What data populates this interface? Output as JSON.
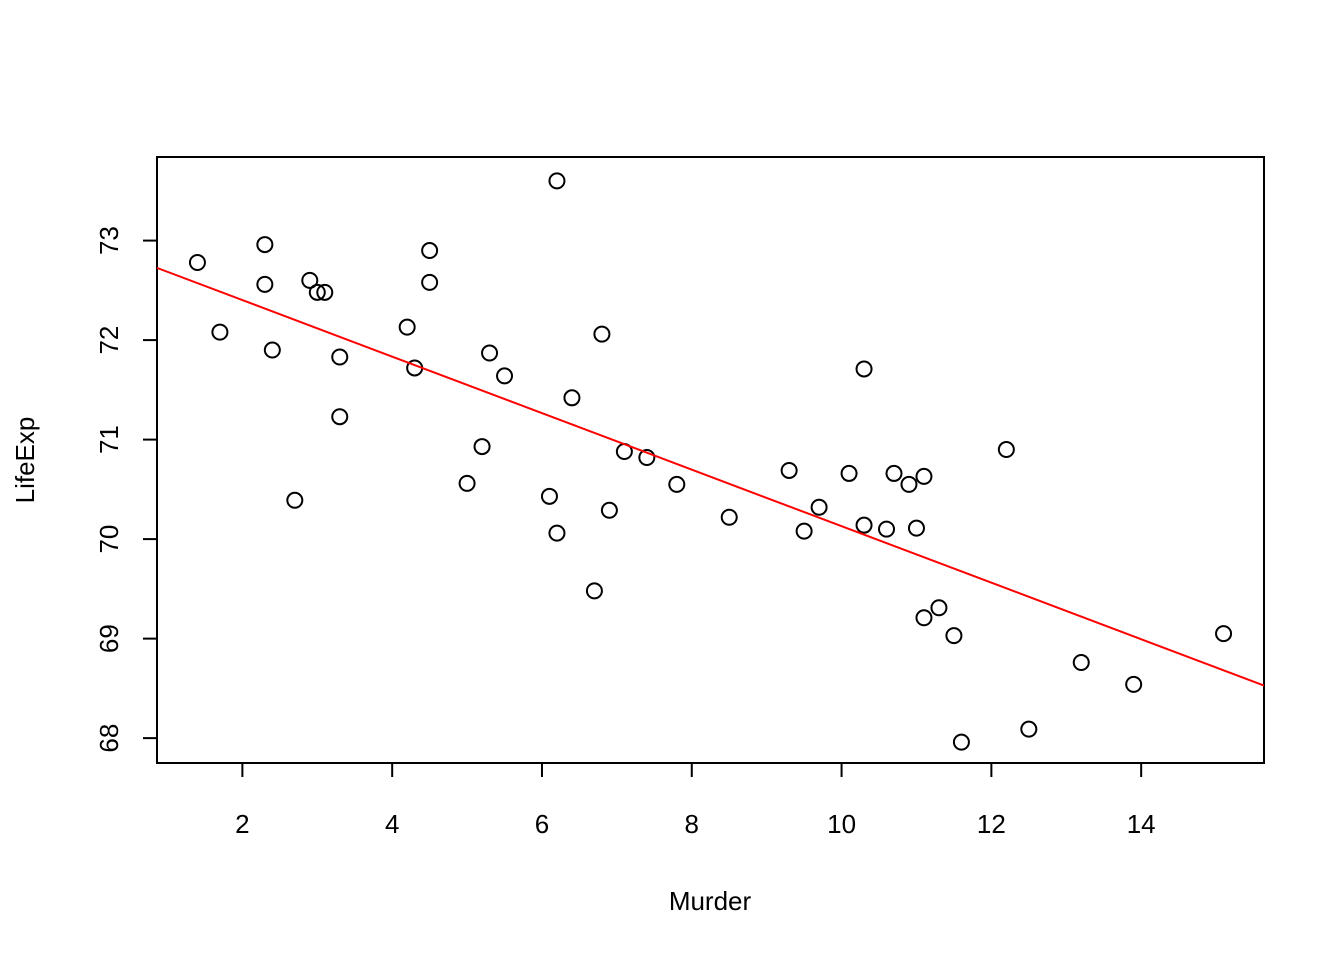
{
  "chart_data": {
    "type": "scatter",
    "title": "",
    "xlabel": "Murder",
    "ylabel": "LifeExp",
    "xlim": [
      0.86,
      15.64
    ],
    "ylim": [
      67.75,
      73.84
    ],
    "xticks": [
      2,
      4,
      6,
      8,
      10,
      12,
      14
    ],
    "yticks": [
      68,
      69,
      70,
      71,
      72,
      73
    ],
    "grid": false,
    "legend": "none",
    "fit_line": {
      "intercept": 72.97,
      "slope": -0.284,
      "color": "#ff0000"
    },
    "points": [
      {
        "x": 15.1,
        "y": 69.05
      },
      {
        "x": 11.3,
        "y": 69.31
      },
      {
        "x": 7.8,
        "y": 70.55
      },
      {
        "x": 10.1,
        "y": 70.66
      },
      {
        "x": 10.3,
        "y": 71.71
      },
      {
        "x": 6.8,
        "y": 72.06
      },
      {
        "x": 3.1,
        "y": 72.48
      },
      {
        "x": 6.2,
        "y": 70.06
      },
      {
        "x": 10.7,
        "y": 70.66
      },
      {
        "x": 13.9,
        "y": 68.54
      },
      {
        "x": 6.2,
        "y": 73.6
      },
      {
        "x": 5.3,
        "y": 71.87
      },
      {
        "x": 10.3,
        "y": 70.14
      },
      {
        "x": 7.1,
        "y": 70.88
      },
      {
        "x": 2.3,
        "y": 72.56
      },
      {
        "x": 4.5,
        "y": 72.58
      },
      {
        "x": 10.6,
        "y": 70.1
      },
      {
        "x": 13.2,
        "y": 68.76
      },
      {
        "x": 2.7,
        "y": 70.39
      },
      {
        "x": 8.5,
        "y": 70.22
      },
      {
        "x": 3.3,
        "y": 71.83
      },
      {
        "x": 11.1,
        "y": 70.63
      },
      {
        "x": 2.3,
        "y": 72.96
      },
      {
        "x": 12.5,
        "y": 68.09
      },
      {
        "x": 9.3,
        "y": 70.69
      },
      {
        "x": 5.0,
        "y": 70.56
      },
      {
        "x": 2.9,
        "y": 72.6
      },
      {
        "x": 11.5,
        "y": 69.03
      },
      {
        "x": 3.3,
        "y": 71.23
      },
      {
        "x": 5.2,
        "y": 70.93
      },
      {
        "x": 9.7,
        "y": 70.32
      },
      {
        "x": 10.9,
        "y": 70.55
      },
      {
        "x": 11.1,
        "y": 69.21
      },
      {
        "x": 1.4,
        "y": 72.78
      },
      {
        "x": 7.4,
        "y": 70.82
      },
      {
        "x": 6.4,
        "y": 71.42
      },
      {
        "x": 4.2,
        "y": 72.13
      },
      {
        "x": 6.1,
        "y": 70.43
      },
      {
        "x": 2.4,
        "y": 71.9
      },
      {
        "x": 11.6,
        "y": 67.96
      },
      {
        "x": 1.7,
        "y": 72.08
      },
      {
        "x": 11.0,
        "y": 70.11
      },
      {
        "x": 12.2,
        "y": 70.9
      },
      {
        "x": 4.5,
        "y": 72.9
      },
      {
        "x": 5.5,
        "y": 71.64
      },
      {
        "x": 9.5,
        "y": 70.08
      },
      {
        "x": 4.3,
        "y": 71.72
      },
      {
        "x": 6.7,
        "y": 69.48
      },
      {
        "x": 3.0,
        "y": 72.48
      },
      {
        "x": 6.9,
        "y": 70.29
      }
    ]
  }
}
